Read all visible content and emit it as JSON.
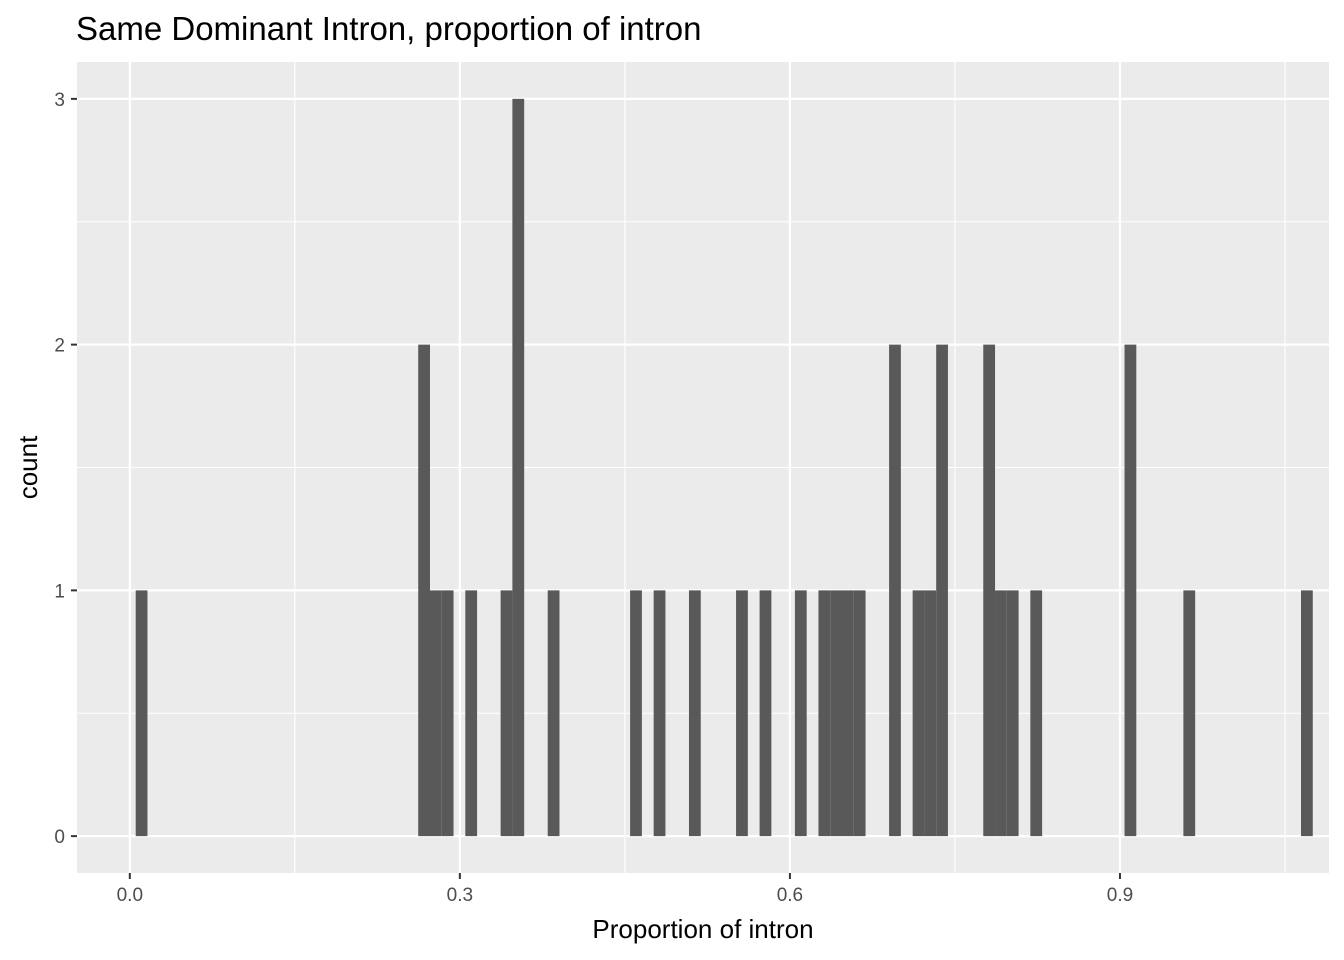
{
  "chart_data": {
    "type": "bar",
    "title": "Same Dominant Intron, proportion of intron",
    "xlabel": "Proportion of intron",
    "ylabel": "count",
    "x_ticks": [
      "0.0",
      "0.3",
      "0.6",
      "0.9"
    ],
    "y_ticks": [
      "0",
      "1",
      "2",
      "3"
    ],
    "xlim": [
      -0.048,
      1.09
    ],
    "ylim": [
      -0.15,
      3.15
    ],
    "bin_width": 0.0107,
    "grid": true,
    "colors": {
      "panel": "#ebebeb",
      "bar": "#595959",
      "grid": "#ffffff"
    },
    "bins": [
      {
        "x": 0.0107,
        "count": 1
      },
      {
        "x": 0.2675,
        "count": 2
      },
      {
        "x": 0.2782,
        "count": 1
      },
      {
        "x": 0.2889,
        "count": 1
      },
      {
        "x": 0.3103,
        "count": 1
      },
      {
        "x": 0.3424,
        "count": 1
      },
      {
        "x": 0.3531,
        "count": 3
      },
      {
        "x": 0.3852,
        "count": 1
      },
      {
        "x": 0.4601,
        "count": 1
      },
      {
        "x": 0.4815,
        "count": 1
      },
      {
        "x": 0.5136,
        "count": 1
      },
      {
        "x": 0.5564,
        "count": 1
      },
      {
        "x": 0.5778,
        "count": 1
      },
      {
        "x": 0.6099,
        "count": 1
      },
      {
        "x": 0.6313,
        "count": 1
      },
      {
        "x": 0.642,
        "count": 1
      },
      {
        "x": 0.6527,
        "count": 1
      },
      {
        "x": 0.6634,
        "count": 1
      },
      {
        "x": 0.6955,
        "count": 2
      },
      {
        "x": 0.7169,
        "count": 1
      },
      {
        "x": 0.7276,
        "count": 1
      },
      {
        "x": 0.7383,
        "count": 2
      },
      {
        "x": 0.7811,
        "count": 2
      },
      {
        "x": 0.7918,
        "count": 1
      },
      {
        "x": 0.8025,
        "count": 1
      },
      {
        "x": 0.8239,
        "count": 1
      },
      {
        "x": 0.9095,
        "count": 2
      },
      {
        "x": 0.963,
        "count": 1
      },
      {
        "x": 1.0699,
        "count": 1
      }
    ]
  }
}
